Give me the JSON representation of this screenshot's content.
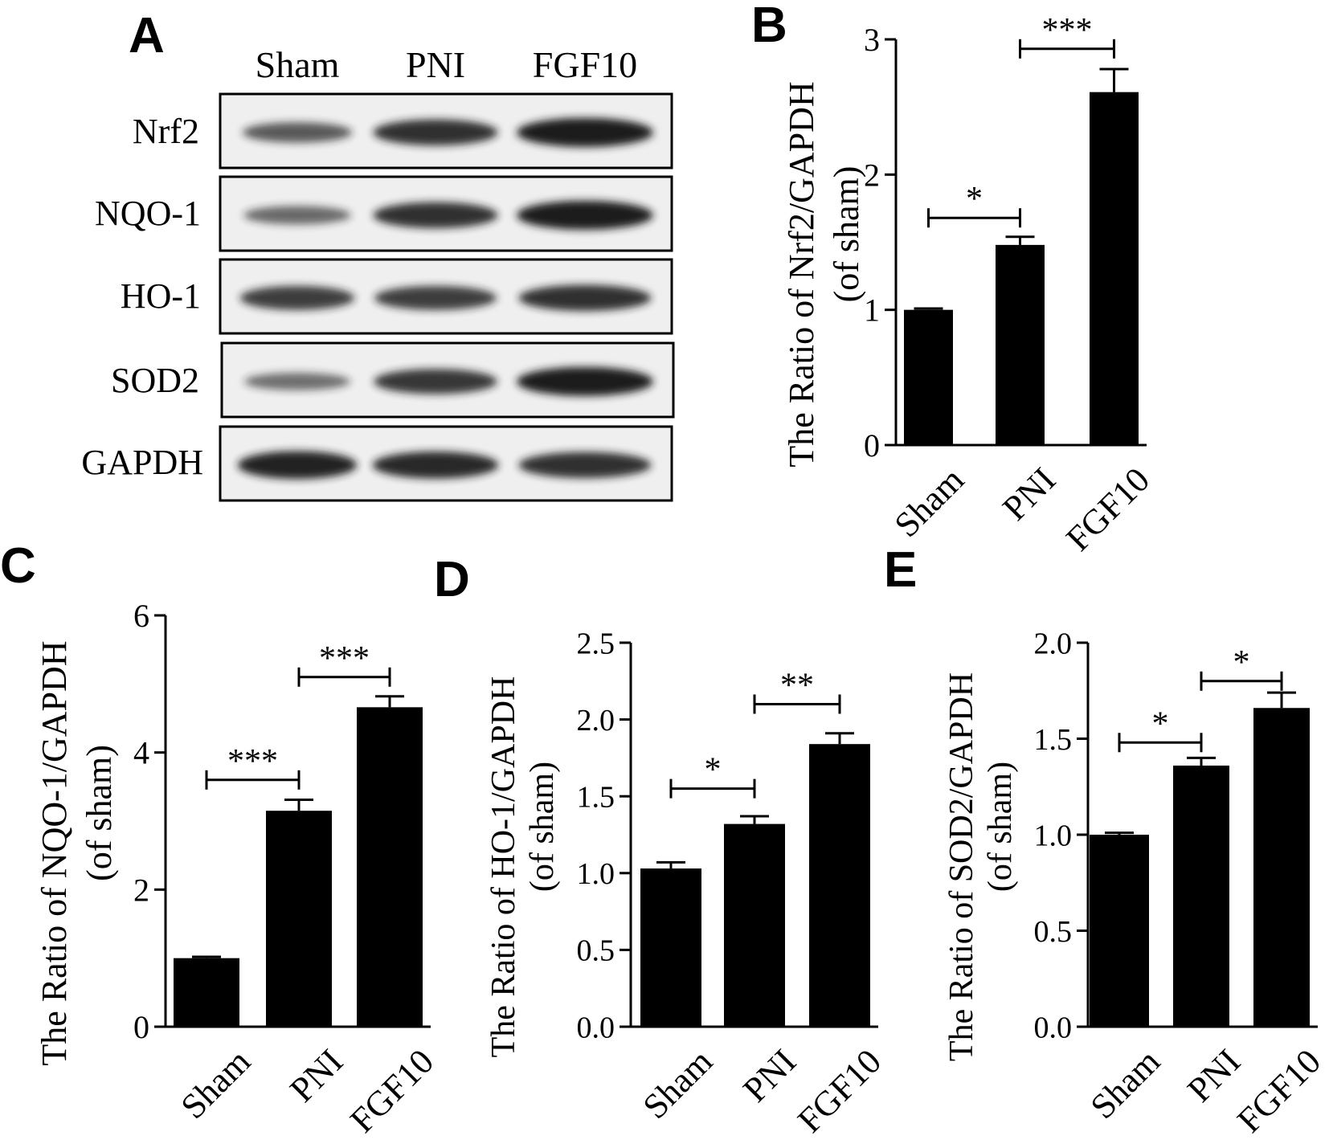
{
  "panel_letters": [
    "A",
    "B",
    "C",
    "D",
    "E"
  ],
  "blot": {
    "columns": [
      "Sham",
      "PNI",
      "FGF10"
    ],
    "rows": [
      "Nrf2",
      "NQO-1",
      "HO-1",
      "SOD2",
      "GAPDH"
    ],
    "band_intensity": [
      [
        0.55,
        0.85,
        1.0
      ],
      [
        0.45,
        0.85,
        1.0
      ],
      [
        0.75,
        0.75,
        0.85
      ],
      [
        0.4,
        0.8,
        1.0
      ],
      [
        0.95,
        0.9,
        0.85
      ]
    ],
    "colors": {
      "band": "#1a1a1a",
      "membrane": "#efefef",
      "frame": "#000000"
    }
  },
  "chart_data": [
    {
      "panel": "B",
      "type": "bar",
      "categories": [
        "Sham",
        "PNI",
        "FGF10"
      ],
      "values": [
        1.0,
        1.48,
        2.61
      ],
      "errors": [
        0.01,
        0.06,
        0.17
      ],
      "ylabel_line1": "The Ratio of Nrf2/GAPDH",
      "ylabel_line2": "(of sham)",
      "ylim": [
        0,
        3
      ],
      "yticks": [
        0,
        1,
        2,
        3
      ],
      "tick_labels": [
        "0",
        "1",
        "2",
        "3"
      ],
      "significance": [
        {
          "from": 0,
          "to": 1,
          "label": "*",
          "y": 1.68
        },
        {
          "from": 1,
          "to": 2,
          "label": "***",
          "y": 2.93
        }
      ],
      "bar_color": "#000000",
      "grid": false
    },
    {
      "panel": "C",
      "type": "bar",
      "categories": [
        "Sham",
        "PNI",
        "FGF10"
      ],
      "values": [
        1.0,
        3.15,
        4.66
      ],
      "errors": [
        0.02,
        0.16,
        0.16
      ],
      "ylabel_line1": "The Ratio of NQO-1/GAPDH",
      "ylabel_line2": "(of sham)",
      "ylim": [
        0,
        6
      ],
      "yticks": [
        0,
        2,
        4,
        6
      ],
      "tick_labels": [
        "0",
        "2",
        "4",
        "6"
      ],
      "significance": [
        {
          "from": 0,
          "to": 1,
          "label": "***",
          "y": 3.6
        },
        {
          "from": 1,
          "to": 2,
          "label": "***",
          "y": 5.1
        }
      ],
      "bar_color": "#000000",
      "grid": false
    },
    {
      "panel": "D",
      "type": "bar",
      "categories": [
        "Sham",
        "PNI",
        "FGF10"
      ],
      "values": [
        1.03,
        1.32,
        1.84
      ],
      "errors": [
        0.04,
        0.05,
        0.07
      ],
      "ylabel_line1": "The Ratio of HO-1/GAPDH",
      "ylabel_line2": "(of sham)",
      "ylim": [
        0,
        2.5
      ],
      "yticks": [
        0,
        0.5,
        1.0,
        1.5,
        2.0,
        2.5
      ],
      "tick_labels": [
        "0.0",
        "0.5",
        "1.0",
        "1.5",
        "2.0",
        "2.5"
      ],
      "significance": [
        {
          "from": 0,
          "to": 1,
          "label": "*",
          "y": 1.55
        },
        {
          "from": 1,
          "to": 2,
          "label": "**",
          "y": 2.1
        }
      ],
      "bar_color": "#000000",
      "grid": false
    },
    {
      "panel": "E",
      "type": "bar",
      "categories": [
        "Sham",
        "PNI",
        "FGF10"
      ],
      "values": [
        1.0,
        1.36,
        1.66
      ],
      "errors": [
        0.01,
        0.04,
        0.08
      ],
      "ylabel_line1": "The Ratio of SOD2/GAPDH",
      "ylabel_line2": "(of sham)",
      "ylim": [
        0,
        2.0
      ],
      "yticks": [
        0,
        0.5,
        1.0,
        1.5,
        2.0
      ],
      "tick_labels": [
        "0.0",
        "0.5",
        "1.0",
        "1.5",
        "2.0"
      ],
      "significance": [
        {
          "from": 0,
          "to": 1,
          "label": "*",
          "y": 1.48
        },
        {
          "from": 1,
          "to": 2,
          "label": "*",
          "y": 1.8
        }
      ],
      "bar_color": "#000000",
      "grid": false
    }
  ]
}
